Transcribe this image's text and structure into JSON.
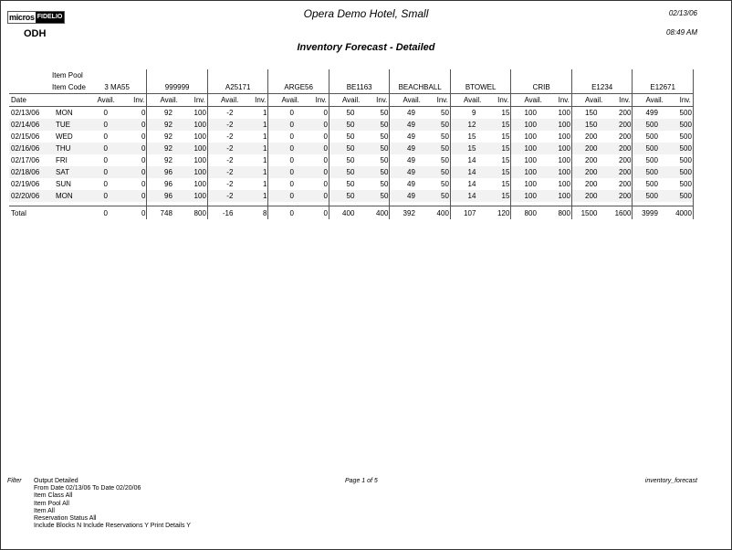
{
  "header": {
    "logo_left": "micros",
    "logo_right": "FIDELIO",
    "property_code": "ODH",
    "hotel_name": "Opera Demo Hotel, Small",
    "report_date": "02/13/06",
    "report_time": "08:49 AM",
    "report_title": "Inventory Forecast - Detailed"
  },
  "table": {
    "item_pool_label": "Item Pool",
    "item_code_label": "Item Code",
    "date_label": "Date",
    "avail_label": "Avail.",
    "inv_label": "Inv.",
    "items": [
      "3 MA55",
      "999999",
      "A25171",
      "ARGE56",
      "BE1163",
      "BEACHBALL",
      "BTOWEL",
      "CRIB",
      "E1234",
      "E12671"
    ],
    "rows": [
      {
        "date": "02/13/06",
        "day": "MON",
        "values": [
          [
            0,
            0
          ],
          [
            92,
            100
          ],
          [
            -2,
            1
          ],
          [
            0,
            0
          ],
          [
            50,
            50
          ],
          [
            49,
            50
          ],
          [
            9,
            15
          ],
          [
            100,
            100
          ],
          [
            150,
            200
          ],
          [
            499,
            500
          ]
        ]
      },
      {
        "date": "02/14/06",
        "day": "TUE",
        "values": [
          [
            0,
            0
          ],
          [
            92,
            100
          ],
          [
            -2,
            1
          ],
          [
            0,
            0
          ],
          [
            50,
            50
          ],
          [
            49,
            50
          ],
          [
            12,
            15
          ],
          [
            100,
            100
          ],
          [
            150,
            200
          ],
          [
            500,
            500
          ]
        ]
      },
      {
        "date": "02/15/06",
        "day": "WED",
        "values": [
          [
            0,
            0
          ],
          [
            92,
            100
          ],
          [
            -2,
            1
          ],
          [
            0,
            0
          ],
          [
            50,
            50
          ],
          [
            49,
            50
          ],
          [
            15,
            15
          ],
          [
            100,
            100
          ],
          [
            200,
            200
          ],
          [
            500,
            500
          ]
        ]
      },
      {
        "date": "02/16/06",
        "day": "THU",
        "values": [
          [
            0,
            0
          ],
          [
            92,
            100
          ],
          [
            -2,
            1
          ],
          [
            0,
            0
          ],
          [
            50,
            50
          ],
          [
            49,
            50
          ],
          [
            15,
            15
          ],
          [
            100,
            100
          ],
          [
            200,
            200
          ],
          [
            500,
            500
          ]
        ]
      },
      {
        "date": "02/17/06",
        "day": "FRI",
        "values": [
          [
            0,
            0
          ],
          [
            92,
            100
          ],
          [
            -2,
            1
          ],
          [
            0,
            0
          ],
          [
            50,
            50
          ],
          [
            49,
            50
          ],
          [
            14,
            15
          ],
          [
            100,
            100
          ],
          [
            200,
            200
          ],
          [
            500,
            500
          ]
        ]
      },
      {
        "date": "02/18/06",
        "day": "SAT",
        "values": [
          [
            0,
            0
          ],
          [
            96,
            100
          ],
          [
            -2,
            1
          ],
          [
            0,
            0
          ],
          [
            50,
            50
          ],
          [
            49,
            50
          ],
          [
            14,
            15
          ],
          [
            100,
            100
          ],
          [
            200,
            200
          ],
          [
            500,
            500
          ]
        ]
      },
      {
        "date": "02/19/06",
        "day": "SUN",
        "values": [
          [
            0,
            0
          ],
          [
            96,
            100
          ],
          [
            -2,
            1
          ],
          [
            0,
            0
          ],
          [
            50,
            50
          ],
          [
            49,
            50
          ],
          [
            14,
            15
          ],
          [
            100,
            100
          ],
          [
            200,
            200
          ],
          [
            500,
            500
          ]
        ]
      },
      {
        "date": "02/20/06",
        "day": "MON",
        "values": [
          [
            0,
            0
          ],
          [
            96,
            100
          ],
          [
            -2,
            1
          ],
          [
            0,
            0
          ],
          [
            50,
            50
          ],
          [
            49,
            50
          ],
          [
            14,
            15
          ],
          [
            100,
            100
          ],
          [
            200,
            200
          ],
          [
            500,
            500
          ]
        ]
      }
    ],
    "total_label": "Total",
    "totals": [
      [
        0,
        0
      ],
      [
        748,
        800
      ],
      [
        -16,
        8
      ],
      [
        0,
        0
      ],
      [
        400,
        400
      ],
      [
        392,
        400
      ],
      [
        107,
        120
      ],
      [
        800,
        800
      ],
      [
        1500,
        1600
      ],
      [
        3999,
        4000
      ]
    ]
  },
  "footer": {
    "filter_label": "Filter",
    "filter_lines": [
      "Output Detailed",
      "From Date 02/13/06   To Date 02/20/06",
      "Item Class All",
      "Item Pool All",
      "Item All",
      "Reservation Status All",
      "Include Blocks N   Include Reservations Y   Print Details Y"
    ],
    "page_label": "Page  1 of 5",
    "report_name": "inventory_forecast"
  }
}
